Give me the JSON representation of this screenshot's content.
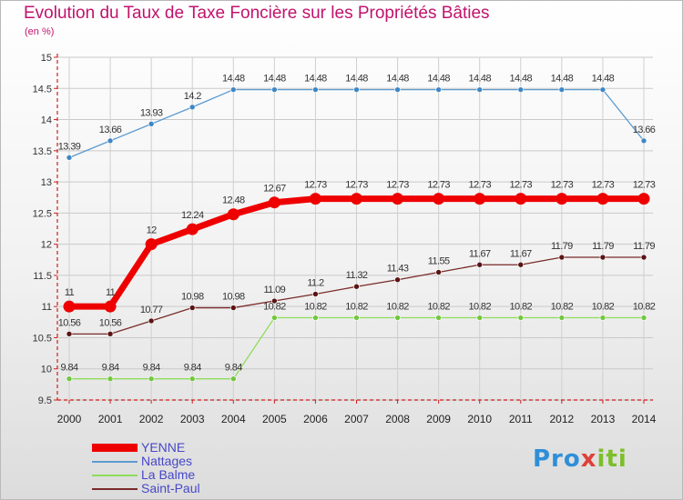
{
  "title": "Evolution du Taux de Taxe Foncière sur les Propriétés Bâties",
  "subtitle": "(en %)",
  "logo": {
    "part1": "Pro",
    "part2": "x",
    "part3": "iti"
  },
  "colors": {
    "title": "#c0136d",
    "axis": "#cc1f1f",
    "grid": "#c8c8c8",
    "legend_text": "#4747c9"
  },
  "chart_data": {
    "type": "line",
    "title": "Evolution du Taux de Taxe Foncière sur les Propriétés Bâties",
    "ylabel": "(en %)",
    "xlabel": "",
    "x": [
      "2000",
      "2001",
      "2002",
      "2003",
      "2004",
      "2005",
      "2006",
      "2007",
      "2008",
      "2009",
      "2010",
      "2011",
      "2012",
      "2013",
      "2014"
    ],
    "ylim": [
      9.5,
      15
    ],
    "yticks": [
      "9.5",
      "10",
      "10.5",
      "11",
      "11.5",
      "12",
      "12.5",
      "13",
      "13.5",
      "14",
      "14.5",
      "15"
    ],
    "grid": true,
    "series": [
      {
        "name": "YENNE",
        "color": "#ee0000",
        "style": "thick",
        "values": [
          11,
          11,
          12,
          12.24,
          12.48,
          12.67,
          12.73,
          12.73,
          12.73,
          12.73,
          12.73,
          12.73,
          12.73,
          12.73,
          12.73
        ],
        "labels": [
          "11",
          "11",
          "12",
          "12.24",
          "12.48",
          "12.67",
          "12.73",
          "12.73",
          "12.73",
          "12.73",
          "12.73",
          "12.73",
          "12.73",
          "12.73",
          "12.73"
        ]
      },
      {
        "name": "Nattages",
        "color": "#5b9bd0",
        "marker": "#3f86c5",
        "values": [
          13.39,
          13.66,
          13.93,
          14.2,
          14.48,
          14.48,
          14.48,
          14.48,
          14.48,
          14.48,
          14.48,
          14.48,
          14.48,
          14.48,
          13.66
        ],
        "labels": [
          "13.39",
          "13.66",
          "13.93",
          "14.2",
          "14.48",
          "14.48",
          "14.48",
          "14.48",
          "14.48",
          "14.48",
          "14.48",
          "14.48",
          "14.48",
          "14.48",
          "13.66"
        ]
      },
      {
        "name": "La Balme",
        "color": "#8fdc5c",
        "marker": "#73c63f",
        "values": [
          9.84,
          9.84,
          9.84,
          9.84,
          9.84,
          10.82,
          10.82,
          10.82,
          10.82,
          10.82,
          10.82,
          10.82,
          10.82,
          10.82,
          10.82
        ],
        "labels": [
          "9.84",
          "9.84",
          "9.84",
          "9.84",
          "9.84",
          "10.82",
          "10.82",
          "10.82",
          "10.82",
          "10.82",
          "10.82",
          "10.82",
          "10.82",
          "10.82",
          "10.82"
        ]
      },
      {
        "name": "Saint-Paul",
        "color": "#7a2a2a",
        "marker": "#5a1414",
        "values": [
          10.56,
          10.56,
          10.77,
          10.98,
          10.98,
          11.09,
          11.2,
          11.32,
          11.43,
          11.55,
          11.67,
          11.67,
          11.79,
          11.79,
          11.79
        ],
        "labels": [
          "10.56",
          "10.56",
          "10.77",
          "10.98",
          "10.98",
          "11.09",
          "11.2",
          "11.32",
          "11.43",
          "11.55",
          "11.67",
          "11.67",
          "11.79",
          "11.79",
          "11.79"
        ]
      }
    ]
  }
}
